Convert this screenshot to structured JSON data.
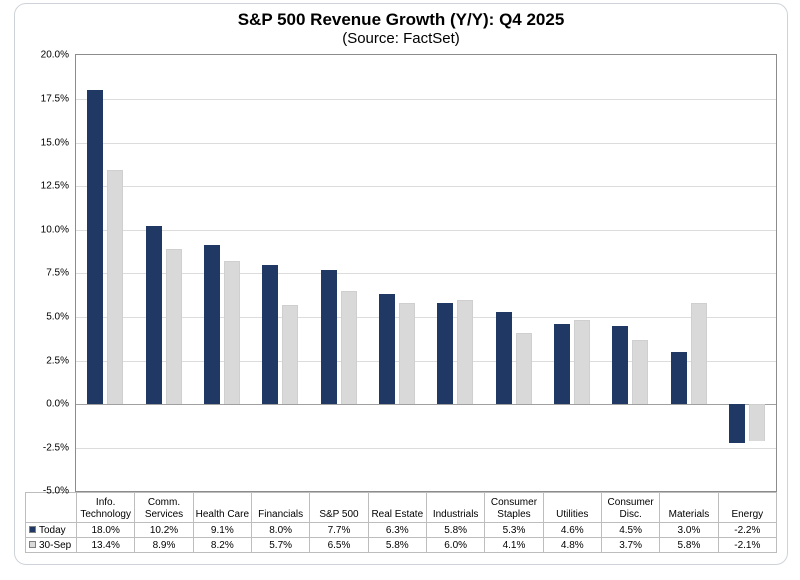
{
  "chart_data": {
    "type": "bar",
    "title": "S&P 500 Revenue Growth (Y/Y): Q4 2025",
    "subtitle": "(Source: FactSet)",
    "categories": [
      "Info. Technology",
      "Comm. Services",
      "Health Care",
      "Financials",
      "S&P 500",
      "Real Estate",
      "Industrials",
      "Consumer Staples",
      "Utilities",
      "Consumer Disc.",
      "Materials",
      "Energy"
    ],
    "series": [
      {
        "name": "Today",
        "color": "#1f3864",
        "values": [
          18.0,
          10.2,
          9.1,
          8.0,
          7.7,
          6.3,
          5.8,
          5.3,
          4.6,
          4.5,
          3.0,
          -2.2
        ]
      },
      {
        "name": "30-Sep",
        "color": "#d9d9d9",
        "values": [
          13.4,
          8.9,
          8.2,
          5.7,
          6.5,
          5.8,
          6.0,
          4.1,
          4.8,
          3.7,
          5.8,
          -2.1
        ]
      }
    ],
    "ylim": [
      -5.0,
      20.0
    ],
    "ytick_step": 2.5,
    "ytick_labels": [
      "20.0%",
      "17.5%",
      "15.0%",
      "12.5%",
      "10.0%",
      "7.5%",
      "5.0%",
      "2.5%",
      "0.0%",
      "-2.5%",
      "-5.0%"
    ],
    "grid": true,
    "legend_position": "data-table-left",
    "data_table": {
      "rows": [
        {
          "label": "Today",
          "values": [
            "18.0%",
            "10.2%",
            "9.1%",
            "8.0%",
            "7.7%",
            "6.3%",
            "5.8%",
            "5.3%",
            "4.6%",
            "4.5%",
            "3.0%",
            "-2.2%"
          ]
        },
        {
          "label": "30-Sep",
          "values": [
            "13.4%",
            "8.9%",
            "8.2%",
            "5.7%",
            "6.5%",
            "5.8%",
            "6.0%",
            "4.1%",
            "4.8%",
            "3.7%",
            "5.8%",
            "-2.1%"
          ]
        }
      ]
    }
  }
}
